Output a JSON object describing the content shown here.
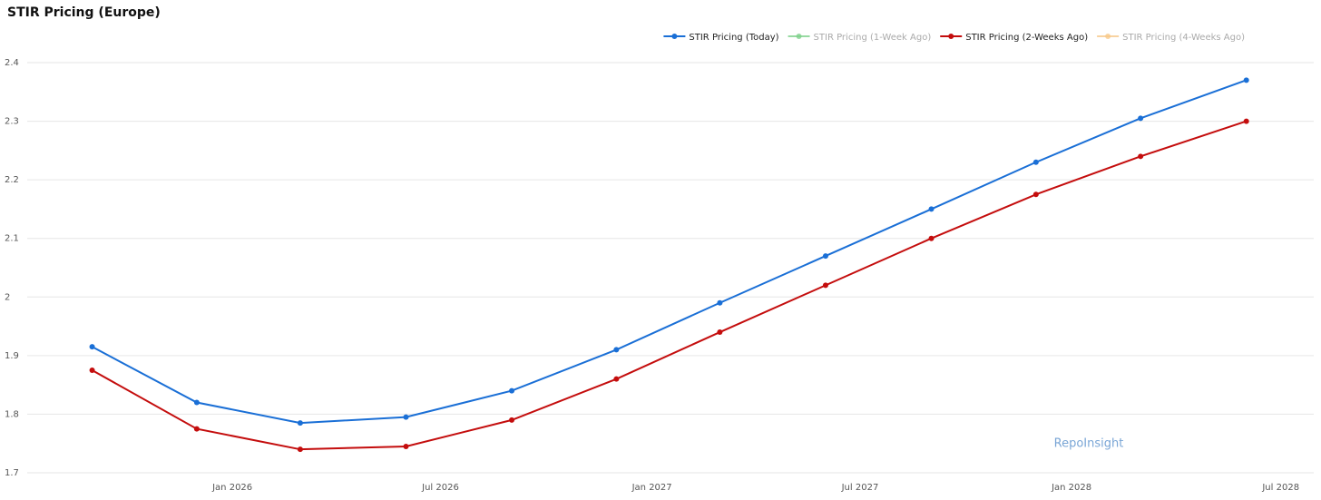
{
  "chart_data": {
    "type": "line",
    "title": "STIR Pricing (Europe)",
    "annotations": [
      "RepoInsight"
    ],
    "x": [
      "2025-09",
      "2025-12",
      "2026-03",
      "2026-06",
      "2026-09",
      "2026-12",
      "2027-03",
      "2027-06",
      "2027-09",
      "2027-12",
      "2028-03",
      "2028-06"
    ],
    "series": [
      {
        "name": "STIR Pricing (Today)",
        "color": "#1a6fd6",
        "values": [
          1.915,
          1.82,
          1.785,
          1.795,
          1.84,
          1.91,
          1.99,
          2.07,
          2.15,
          2.23,
          2.305,
          2.37
        ]
      },
      {
        "name": "STIR Pricing (1-Week Ago)",
        "color": "#7fd18c",
        "hidden": true
      },
      {
        "name": "STIR Pricing (2-Weeks Ago)",
        "color": "#c40d0d",
        "values": [
          1.875,
          1.775,
          1.74,
          1.745,
          1.79,
          1.86,
          1.94,
          2.02,
          2.1,
          2.175,
          2.24,
          2.3
        ]
      },
      {
        "name": "STIR Pricing (4-Weeks Ago)",
        "color": "#f7c98a",
        "hidden": true
      }
    ],
    "xlim": [
      "2025-07",
      "2028-08"
    ],
    "xticks": [
      {
        "value": "2026-01",
        "label": "Jan 2026"
      },
      {
        "value": "2026-07",
        "label": "Jul 2026"
      },
      {
        "value": "2027-01",
        "label": "Jan 2027"
      },
      {
        "value": "2027-07",
        "label": "Jul 2027"
      },
      {
        "value": "2028-01",
        "label": "Jan 2028"
      },
      {
        "value": "2028-07",
        "label": "Jul 2028"
      }
    ],
    "ylim": [
      1.7,
      2.4
    ],
    "yticks": [
      1.7,
      1.8,
      1.9,
      2,
      2.1,
      2.2,
      2.3,
      2.4
    ],
    "grid": true,
    "legend": "top-right"
  }
}
